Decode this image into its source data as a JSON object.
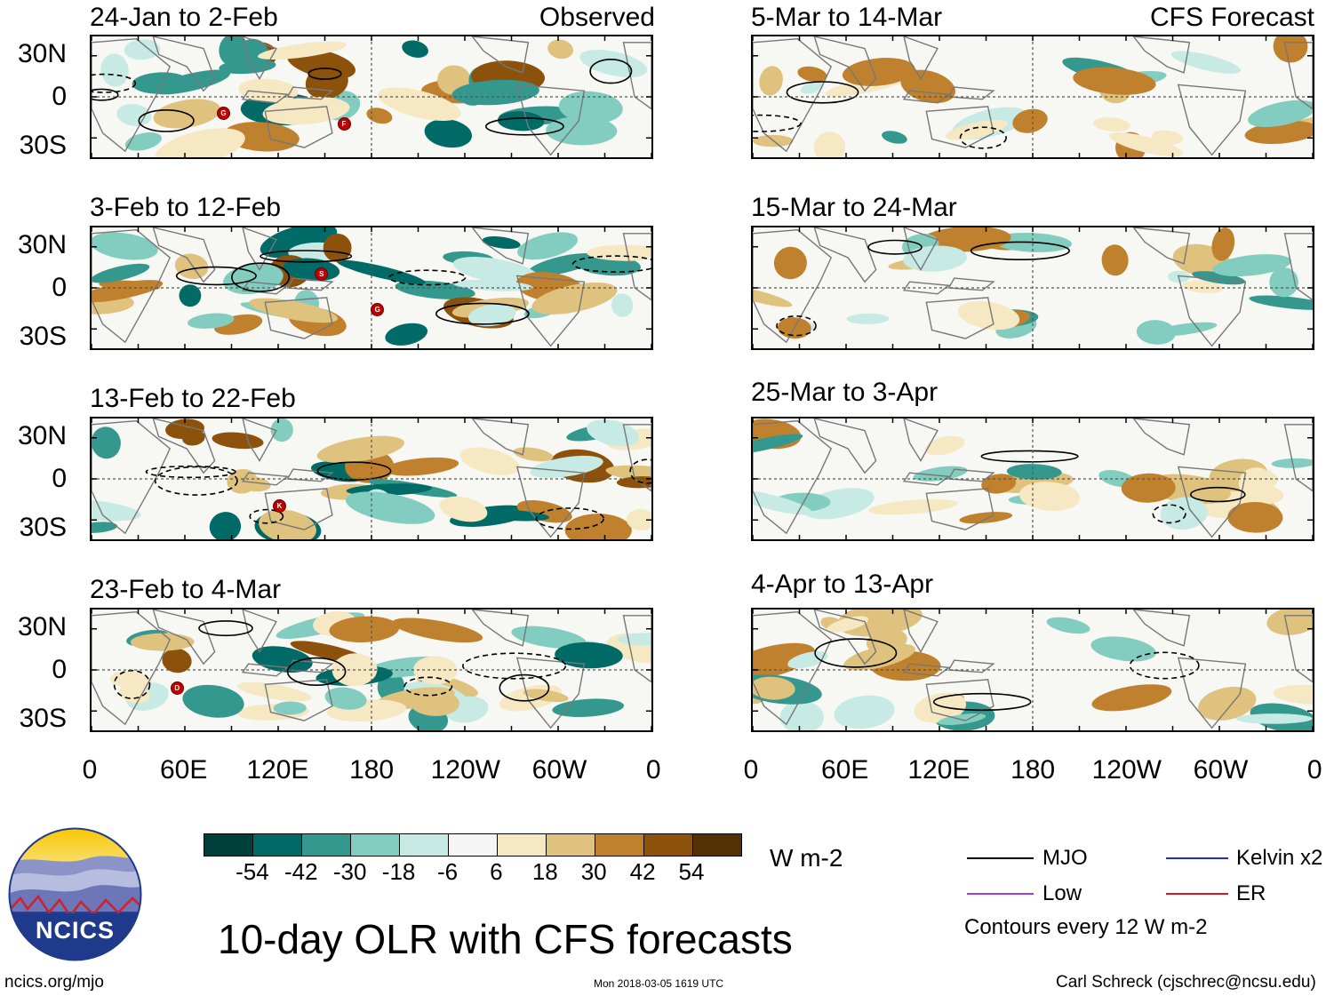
{
  "titles": {
    "observed_label": "Observed",
    "forecast_label": "CFS Forecast",
    "left": [
      "24-Jan to 2-Feb",
      "3-Feb to 12-Feb",
      "13-Feb to 22-Feb",
      "23-Feb to 4-Mar"
    ],
    "right": [
      "5-Mar to 14-Mar",
      "15-Mar to 24-Mar",
      "25-Mar to 3-Apr",
      "4-Apr to 13-Apr"
    ]
  },
  "lat_labels": [
    "30N",
    "0",
    "30S"
  ],
  "lon_labels": [
    "0",
    "60E",
    "120E",
    "180",
    "120W",
    "60W",
    "0"
  ],
  "storm_markers": [
    {
      "panel": "left-0",
      "letter": "G"
    },
    {
      "panel": "left-0",
      "letter": "F"
    },
    {
      "panel": "left-1",
      "letter": "S"
    },
    {
      "panel": "left-1",
      "letter": "G"
    },
    {
      "panel": "left-2",
      "letter": "K"
    },
    {
      "panel": "left-3",
      "letter": "D"
    }
  ],
  "colorbar": {
    "colors": [
      "#00403a",
      "#006b66",
      "#34988f",
      "#82cdc0",
      "#c7eae4",
      "#f5f5f5",
      "#f6e8c3",
      "#dfc27d",
      "#bf812d",
      "#8c510a",
      "#543005"
    ],
    "labels": [
      "-54",
      "-42",
      "-30",
      "-18",
      "-6",
      "6",
      "18",
      "30",
      "42",
      "54"
    ],
    "units": "W m-2"
  },
  "legend": {
    "items": [
      {
        "label": "MJO",
        "color": "#000000"
      },
      {
        "label": "Kelvin x2",
        "color": "#1a2fd6"
      },
      {
        "label": "Low",
        "color": "#9b3fe0"
      },
      {
        "label": "ER",
        "color": "#e0141e"
      }
    ],
    "contours_note": "Contours every 12 W m-2"
  },
  "main_title": "10-day OLR with CFS forecasts",
  "logo_text": "NCICS",
  "footer": {
    "url": "ncics.org/mjo",
    "timestamp": "Mon 2018-03-05 1619 UTC",
    "author": "Carl Schreck (cjschrec@ncsu.edu)"
  }
}
